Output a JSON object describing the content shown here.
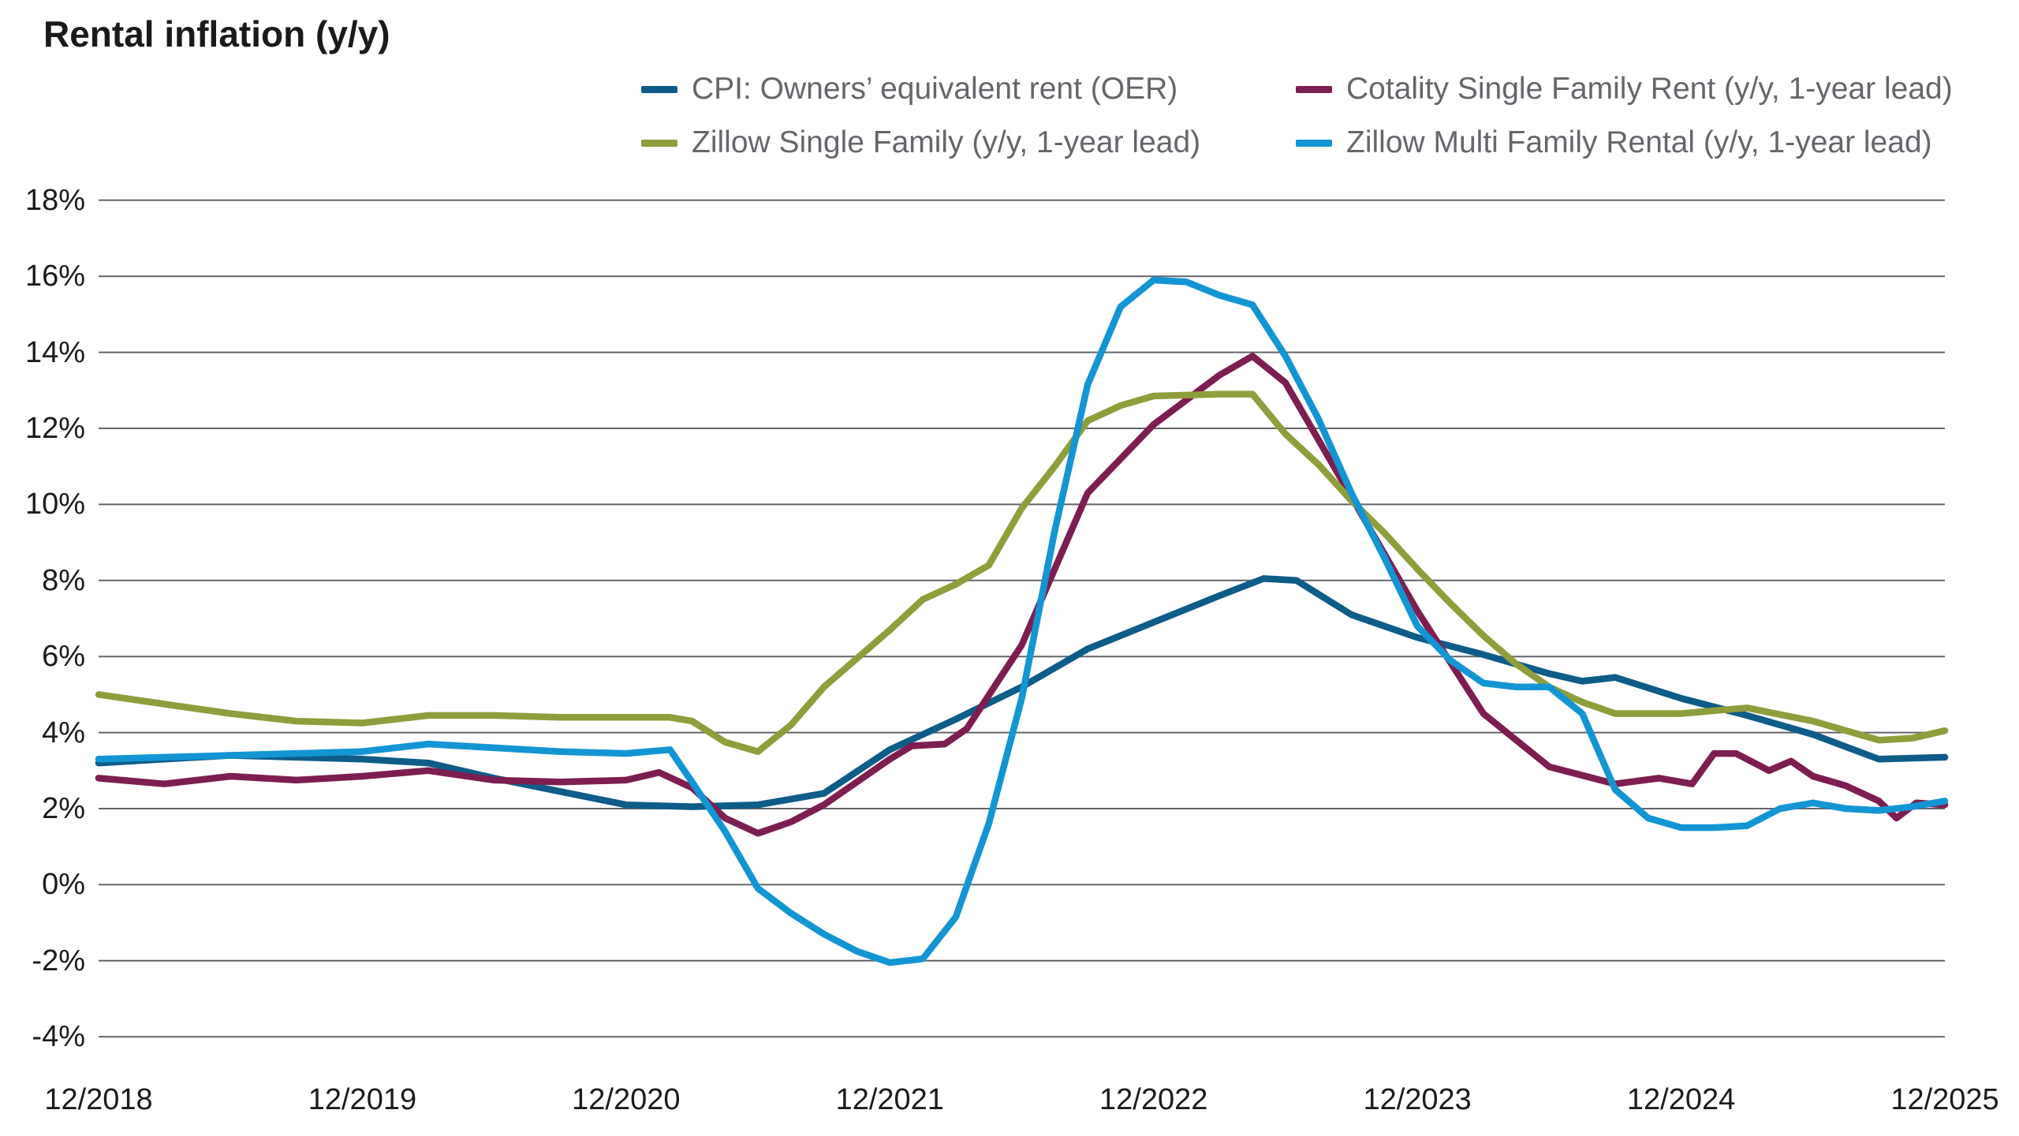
{
  "title": "Rental inflation (y/y)",
  "colors": {
    "background": "#ffffff",
    "gridline": "#63646a",
    "axis_text": "#1b1b1d",
    "legend_text": "#64666b",
    "oer_blue": "#0e5c87",
    "cotality_maroon": "#7d1e51",
    "zillow_sf_olive": "#8f9e3c",
    "zillow_mf_lightblue": "#1495d3"
  },
  "legend": {
    "items": [
      {
        "label": "CPI: Owners’ equivalent rent (OER)",
        "color": "#0e5c87",
        "row": 0,
        "col": 0
      },
      {
        "label": "Cotality Single Family Rent (y/y, 1-year lead)",
        "color": "#7d1e51",
        "row": 0,
        "col": 1
      },
      {
        "label": "Zillow Single Family (y/y, 1-year lead)",
        "color": "#8f9e3c",
        "row": 1,
        "col": 0
      },
      {
        "label": "Zillow Multi Family Rental (y/y, 1-year lead)",
        "color": "#1495d3",
        "row": 1,
        "col": 1
      }
    ]
  },
  "chart_data": {
    "type": "line",
    "title": "Rental inflation (y/y)",
    "xlabel": "",
    "ylabel": "",
    "grid": "horizontal",
    "legend_position": "top",
    "y_axis": {
      "min": -4,
      "max": 18,
      "step": 2,
      "tick_labels": [
        "18%",
        "16%",
        "14%",
        "12%",
        "10%",
        "8%",
        "6%",
        "4%",
        "2%",
        "0%",
        "-2%",
        "-4%"
      ],
      "tick_values": [
        18,
        16,
        14,
        12,
        10,
        8,
        6,
        4,
        2,
        0,
        -2,
        -4
      ],
      "format": "percent"
    },
    "x_axis": {
      "unit": "months since Dec 2018",
      "range_t": [
        0,
        84
      ],
      "tick_labels": [
        "12/2018",
        "12/2019",
        "12/2020",
        "12/2021",
        "12/2022",
        "12/2023",
        "12/2024",
        "12/2025"
      ],
      "tick_t": [
        0,
        12,
        24,
        36,
        48,
        60,
        72,
        84
      ]
    },
    "series": [
      {
        "name": "CPI: Owners’ equivalent rent (OER)",
        "color": "#0e5c87",
        "points": [
          [
            0,
            3.2
          ],
          [
            3,
            3.3
          ],
          [
            6,
            3.4
          ],
          [
            9,
            3.35
          ],
          [
            12,
            3.3
          ],
          [
            15,
            3.2
          ],
          [
            18,
            2.8
          ],
          [
            21,
            2.45
          ],
          [
            24,
            2.1
          ],
          [
            27,
            2.05
          ],
          [
            30,
            2.1
          ],
          [
            33,
            2.4
          ],
          [
            36,
            3.55
          ],
          [
            39,
            4.35
          ],
          [
            42,
            5.2
          ],
          [
            45,
            6.2
          ],
          [
            48,
            6.9
          ],
          [
            51,
            7.6
          ],
          [
            53,
            8.05
          ],
          [
            54.5,
            8.0
          ],
          [
            57,
            7.1
          ],
          [
            60,
            6.5
          ],
          [
            63,
            6.05
          ],
          [
            66,
            5.55
          ],
          [
            67.5,
            5.35
          ],
          [
            69,
            5.45
          ],
          [
            72,
            4.9
          ],
          [
            75,
            4.45
          ],
          [
            78,
            3.95
          ],
          [
            81,
            3.3
          ],
          [
            84,
            3.35
          ]
        ]
      },
      {
        "name": "Cotality Single Family Rent (y/y, 1-year lead)",
        "color": "#7d1e51",
        "points": [
          [
            0,
            2.8
          ],
          [
            3,
            2.65
          ],
          [
            6,
            2.85
          ],
          [
            9,
            2.75
          ],
          [
            12,
            2.85
          ],
          [
            15,
            3.0
          ],
          [
            18,
            2.75
          ],
          [
            21,
            2.7
          ],
          [
            24,
            2.75
          ],
          [
            25.5,
            2.95
          ],
          [
            27,
            2.55
          ],
          [
            28.5,
            1.75
          ],
          [
            30,
            1.35
          ],
          [
            31.5,
            1.65
          ],
          [
            33,
            2.1
          ],
          [
            36,
            3.3
          ],
          [
            37,
            3.65
          ],
          [
            38.5,
            3.7
          ],
          [
            39.5,
            4.1
          ],
          [
            42,
            6.3
          ],
          [
            45,
            10.3
          ],
          [
            48,
            12.1
          ],
          [
            51,
            13.4
          ],
          [
            52.5,
            13.9
          ],
          [
            54,
            13.2
          ],
          [
            57,
            10.2
          ],
          [
            60,
            7.2
          ],
          [
            63,
            4.5
          ],
          [
            66,
            3.1
          ],
          [
            69,
            2.65
          ],
          [
            71,
            2.8
          ],
          [
            72.5,
            2.65
          ],
          [
            73.5,
            3.45
          ],
          [
            74.5,
            3.45
          ],
          [
            76,
            3.0
          ],
          [
            77,
            3.25
          ],
          [
            78,
            2.85
          ],
          [
            79.5,
            2.6
          ],
          [
            81,
            2.2
          ],
          [
            81.8,
            1.75
          ],
          [
            82.7,
            2.15
          ],
          [
            84,
            2.1
          ]
        ]
      },
      {
        "name": "Zillow Single Family (y/y, 1-year lead)",
        "color": "#8f9e3c",
        "points": [
          [
            0,
            5.0
          ],
          [
            3,
            4.75
          ],
          [
            6,
            4.5
          ],
          [
            9,
            4.3
          ],
          [
            12,
            4.25
          ],
          [
            15,
            4.45
          ],
          [
            18,
            4.45
          ],
          [
            21,
            4.4
          ],
          [
            24,
            4.4
          ],
          [
            26,
            4.4
          ],
          [
            27,
            4.3
          ],
          [
            28.5,
            3.75
          ],
          [
            30,
            3.5
          ],
          [
            31.5,
            4.2
          ],
          [
            33,
            5.2
          ],
          [
            36,
            6.7
          ],
          [
            37.5,
            7.5
          ],
          [
            39,
            7.9
          ],
          [
            40.5,
            8.4
          ],
          [
            42,
            9.9
          ],
          [
            43.5,
            11.0
          ],
          [
            45,
            12.2
          ],
          [
            46.5,
            12.6
          ],
          [
            48,
            12.85
          ],
          [
            51,
            12.9
          ],
          [
            52.5,
            12.9
          ],
          [
            54,
            11.85
          ],
          [
            55.5,
            11.05
          ],
          [
            57,
            10.1
          ],
          [
            58.5,
            9.25
          ],
          [
            60,
            8.3
          ],
          [
            61.5,
            7.4
          ],
          [
            63,
            6.55
          ],
          [
            64.5,
            5.8
          ],
          [
            66,
            5.2
          ],
          [
            67.5,
            4.8
          ],
          [
            69,
            4.5
          ],
          [
            72,
            4.5
          ],
          [
            75,
            4.65
          ],
          [
            78,
            4.3
          ],
          [
            81,
            3.8
          ],
          [
            82.5,
            3.85
          ],
          [
            84,
            4.05
          ]
        ]
      },
      {
        "name": "Zillow Multi Family Rental (y/y, 1-year lead)",
        "color": "#1495d3",
        "points": [
          [
            0,
            3.3
          ],
          [
            3,
            3.35
          ],
          [
            6,
            3.4
          ],
          [
            9,
            3.45
          ],
          [
            12,
            3.5
          ],
          [
            15,
            3.7
          ],
          [
            18,
            3.6
          ],
          [
            21,
            3.5
          ],
          [
            24,
            3.45
          ],
          [
            26,
            3.55
          ],
          [
            27,
            2.7
          ],
          [
            28.5,
            1.4
          ],
          [
            30,
            -0.1
          ],
          [
            31.5,
            -0.75
          ],
          [
            33,
            -1.3
          ],
          [
            34.5,
            -1.75
          ],
          [
            36,
            -2.05
          ],
          [
            37.5,
            -1.95
          ],
          [
            39,
            -0.85
          ],
          [
            40.5,
            1.6
          ],
          [
            42,
            4.9
          ],
          [
            43.5,
            9.3
          ],
          [
            45,
            13.15
          ],
          [
            46.5,
            15.2
          ],
          [
            48,
            15.9
          ],
          [
            49.5,
            15.85
          ],
          [
            51,
            15.5
          ],
          [
            52.5,
            15.25
          ],
          [
            54,
            13.9
          ],
          [
            55.5,
            12.25
          ],
          [
            57,
            10.3
          ],
          [
            58.5,
            8.6
          ],
          [
            60,
            6.8
          ],
          [
            61.5,
            5.9
          ],
          [
            63,
            5.3
          ],
          [
            64.5,
            5.2
          ],
          [
            66,
            5.2
          ],
          [
            67.5,
            4.5
          ],
          [
            69,
            2.5
          ],
          [
            70.5,
            1.75
          ],
          [
            72,
            1.5
          ],
          [
            73.5,
            1.5
          ],
          [
            75,
            1.55
          ],
          [
            76.5,
            2.0
          ],
          [
            78,
            2.15
          ],
          [
            79.5,
            2.0
          ],
          [
            81,
            1.95
          ],
          [
            82.5,
            2.05
          ],
          [
            84,
            2.2
          ]
        ]
      }
    ]
  }
}
